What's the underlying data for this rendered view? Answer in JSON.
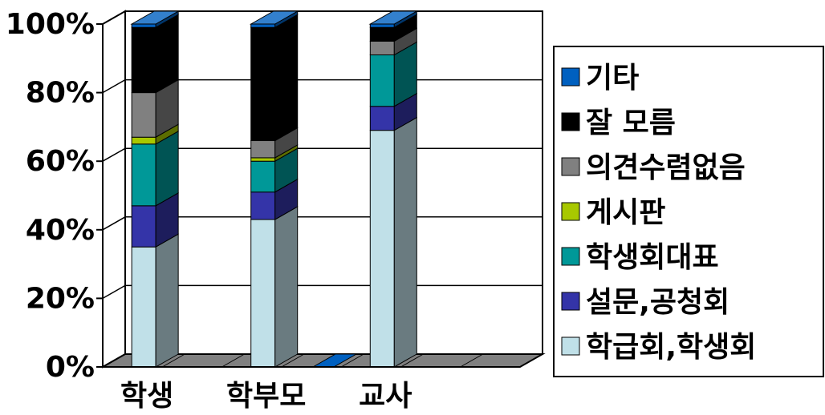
{
  "chart_data": {
    "type": "bar",
    "stacked": true,
    "percent_stacked": true,
    "three_d": true,
    "categories": [
      "학생",
      "학부모",
      "교사"
    ],
    "y_ticks": [
      "0%",
      "20%",
      "40%",
      "60%",
      "80%",
      "100%"
    ],
    "ylim": [
      0,
      100
    ],
    "grid": true,
    "legend_position": "right",
    "series": [
      {
        "name": "학급회,학생회",
        "color": "#c0e0e8",
        "values": [
          35,
          43,
          69
        ]
      },
      {
        "name": "설문,공청회",
        "color": "#3434a8",
        "values": [
          12,
          8,
          7
        ]
      },
      {
        "name": "학생회대표",
        "color": "#009898",
        "values": [
          18,
          9,
          15
        ]
      },
      {
        "name": "게시판",
        "color": "#a8c800",
        "values": [
          2,
          1,
          0
        ]
      },
      {
        "name": "의견수렴없음",
        "color": "#808080",
        "values": [
          13,
          5,
          4
        ]
      },
      {
        "name": "잘 모름",
        "color": "#000000",
        "values": [
          19,
          33,
          4
        ]
      },
      {
        "name": "기타",
        "color": "#0060c0",
        "values": [
          1,
          1,
          1
        ]
      }
    ]
  }
}
